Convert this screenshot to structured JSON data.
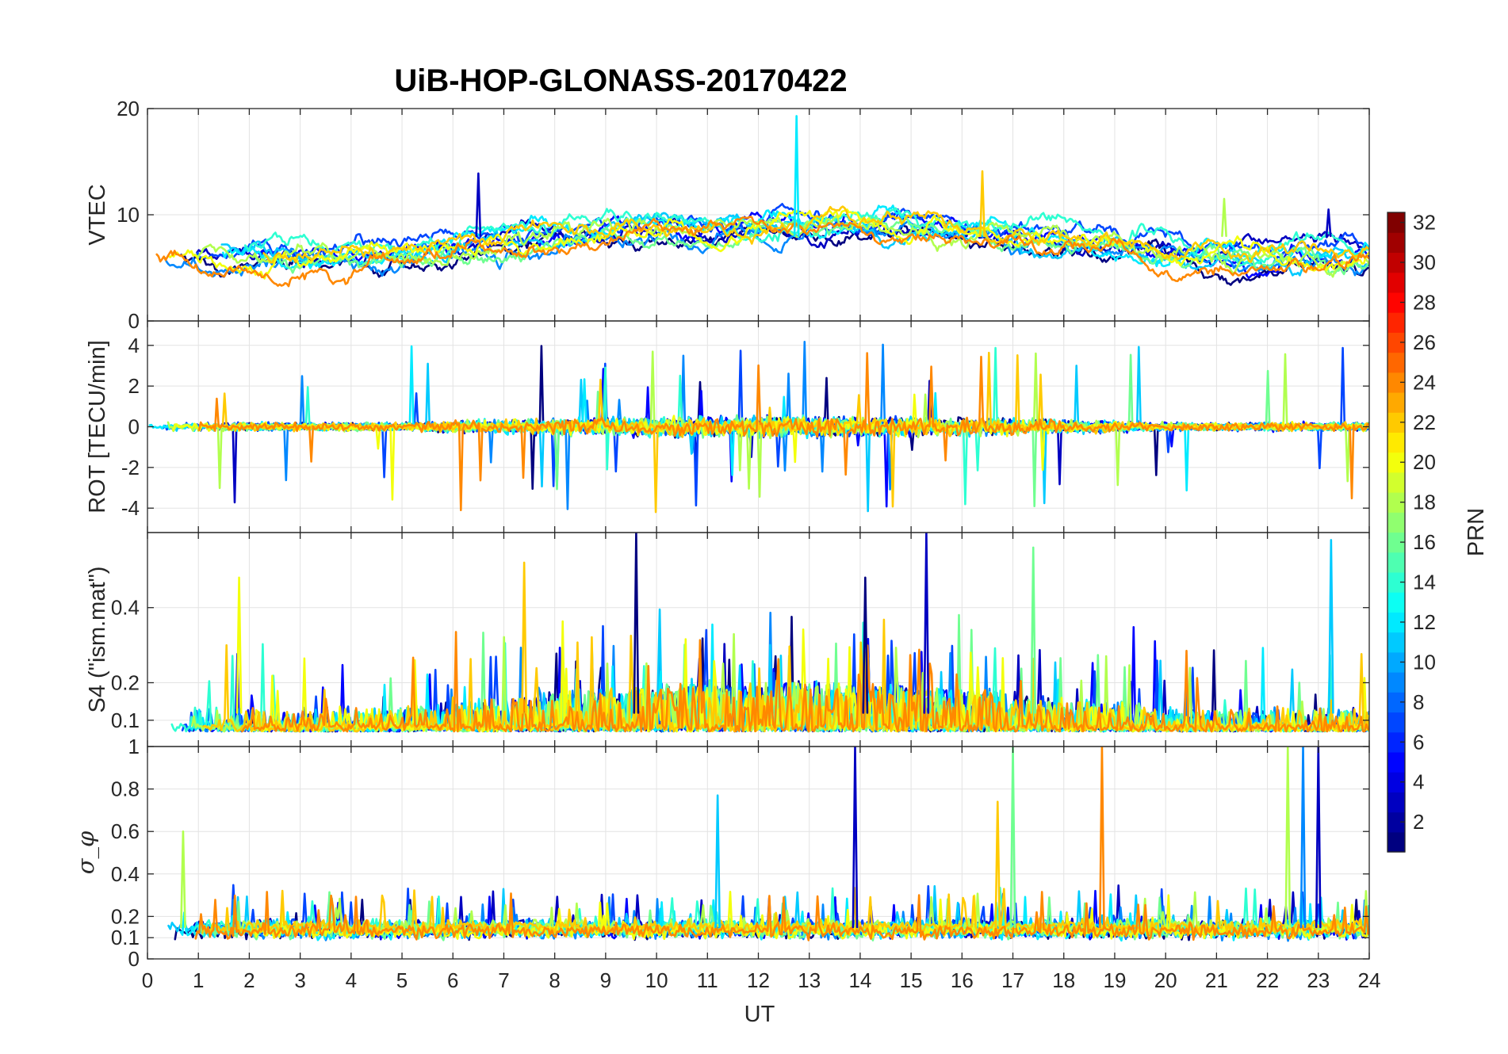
{
  "chart_data": {
    "type": "line",
    "title": "UiB-HOP-GLONASS-20170422",
    "xlabel": "UT",
    "xlim": [
      0,
      24
    ],
    "xticks": [
      "0",
      "1",
      "2",
      "3",
      "4",
      "5",
      "6",
      "7",
      "8",
      "9",
      "10",
      "11",
      "12",
      "13",
      "14",
      "15",
      "16",
      "17",
      "18",
      "19",
      "20",
      "21",
      "22",
      "23",
      "24"
    ],
    "grid": true,
    "series_prn": [
      1,
      3,
      5,
      7,
      9,
      11,
      12,
      14,
      16,
      18,
      20,
      22,
      24
    ],
    "seed": 20170422,
    "panels": [
      {
        "ylabel": "VTEC",
        "ylim": [
          0,
          20
        ],
        "yticks": [
          {
            "v": 0,
            "t": "0"
          },
          {
            "v": 10,
            "t": "10"
          },
          {
            "v": 20,
            "t": "20"
          }
        ],
        "kind": "vtec",
        "spikes": [
          {
            "x": 12.75,
            "y": 19.3,
            "prn": 12
          },
          {
            "x": 6.5,
            "y": 13.9,
            "prn": 3
          },
          {
            "x": 16.4,
            "y": 14.1,
            "prn": 22
          },
          {
            "x": 23.2,
            "y": 10.5,
            "prn": 3
          },
          {
            "x": 21.15,
            "y": 11.5,
            "prn": 18
          }
        ]
      },
      {
        "ylabel": "ROT [TECU/min]",
        "ylim": [
          -5.2,
          5.2
        ],
        "yticks": [
          {
            "v": -4,
            "t": "-4"
          },
          {
            "v": -2,
            "t": "-2"
          },
          {
            "v": 0,
            "t": "0"
          },
          {
            "v": 2,
            "t": "2"
          },
          {
            "v": 4,
            "t": "4"
          }
        ],
        "kind": "rot"
      },
      {
        "ylabel": "S4 (\"ism.mat\")",
        "ylim": [
          0.03,
          0.6
        ],
        "yticks": [
          {
            "v": 0.1,
            "t": "0.1"
          },
          {
            "v": 0.2,
            "t": "0.2"
          },
          {
            "v": 0.4,
            "t": "0.4"
          }
        ],
        "kind": "s4",
        "spikes": [
          {
            "x": 9.6,
            "y": 0.6,
            "prn": 1
          },
          {
            "x": 15.3,
            "y": 0.6,
            "prn": 3
          },
          {
            "x": 17.4,
            "y": 0.56,
            "prn": 16
          },
          {
            "x": 23.25,
            "y": 0.58,
            "prn": 11
          },
          {
            "x": 7.4,
            "y": 0.52,
            "prn": 22
          },
          {
            "x": 1.8,
            "y": 0.48,
            "prn": 20
          },
          {
            "x": 14.1,
            "y": 0.48,
            "prn": 1
          }
        ]
      },
      {
        "ylabel": "σ_φ",
        "ylim": [
          0,
          1
        ],
        "yticks": [
          {
            "v": 0,
            "t": "0"
          },
          {
            "v": 0.1,
            "t": "0.1"
          },
          {
            "v": 0.2,
            "t": "0.2"
          },
          {
            "v": 0.4,
            "t": "0.4"
          },
          {
            "v": 0.6,
            "t": "0.6"
          },
          {
            "v": 0.8,
            "t": "0.8"
          },
          {
            "v": 1,
            "t": "1"
          }
        ],
        "kind": "sigma",
        "spikes": [
          {
            "x": 13.9,
            "y": 1.0,
            "prn": 3
          },
          {
            "x": 18.75,
            "y": 1.0,
            "prn": 24
          },
          {
            "x": 17.0,
            "y": 1.0,
            "prn": 16
          },
          {
            "x": 22.4,
            "y": 1.0,
            "prn": 18
          },
          {
            "x": 22.7,
            "y": 1.0,
            "prn": 9
          },
          {
            "x": 23.0,
            "y": 1.0,
            "prn": 3
          },
          {
            "x": 11.2,
            "y": 0.77,
            "prn": 11
          },
          {
            "x": 16.7,
            "y": 0.74,
            "prn": 22
          },
          {
            "x": 0.7,
            "y": 0.6,
            "prn": 18
          }
        ]
      }
    ],
    "colorbar": {
      "label": "PRN",
      "range": [
        1,
        32
      ],
      "ticks": [
        "2",
        "4",
        "6",
        "8",
        "10",
        "12",
        "14",
        "16",
        "18",
        "20",
        "22",
        "24",
        "26",
        "28",
        "30",
        "32"
      ],
      "colormap": "jet"
    }
  }
}
